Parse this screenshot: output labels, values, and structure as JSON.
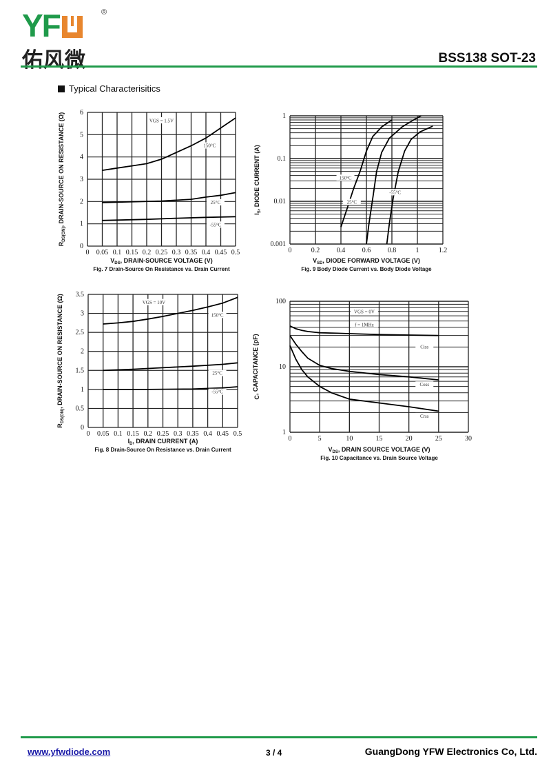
{
  "header": {
    "logo_text": "YFW",
    "logo_cn": "佑风微",
    "registered": "®",
    "part_title": "BSS138  SOT-23",
    "section_title": "Typical  Characterisitics"
  },
  "footer": {
    "website": "www.yfwdiode.com",
    "page": "3 / 4",
    "company": "GuangDong YFW Electronics Co, Ltd."
  },
  "colors": {
    "brand_green": "#1f9a4a",
    "brand_orange": "#e8862e",
    "link": "#1a1aa8"
  },
  "chart_data": [
    {
      "type": "line",
      "caption": "Fig. 7  Drain-Source On Resistance vs. Drain Current",
      "xlabel": {
        "sym": "V",
        "sub": "DS",
        "text": ", DRAIN-SOURCE VOLTAGE (V)"
      },
      "ylabel": {
        "sym": "R",
        "sub": "DS(ON)",
        "text": ", DRAIN-SOURCE ON RESISTANCE (Ω)"
      },
      "xscale": "linear",
      "yscale": "linear",
      "xlim": [
        0,
        0.5
      ],
      "ylim": [
        0,
        6
      ],
      "xticks": [
        "0",
        "0.05",
        "0.1",
        "0.15",
        "0.2",
        "0.25",
        "0.3",
        "0.35",
        "0.4",
        "0.45",
        "0.5"
      ],
      "yticks": [
        "0",
        "1",
        "2",
        "3",
        "4",
        "5",
        "6"
      ],
      "grid": true,
      "annotations": [
        "VGS = 1.5V"
      ],
      "series": [
        {
          "name": "150°C",
          "x": [
            0.05,
            0.1,
            0.15,
            0.2,
            0.25,
            0.3,
            0.35,
            0.4,
            0.45,
            0.5
          ],
          "y": [
            3.4,
            3.5,
            3.6,
            3.7,
            3.9,
            4.2,
            4.5,
            4.85,
            5.3,
            5.75
          ]
        },
        {
          "name": "25°C",
          "x": [
            0.05,
            0.15,
            0.25,
            0.35,
            0.4,
            0.45,
            0.5
          ],
          "y": [
            1.95,
            1.99,
            2.02,
            2.1,
            2.2,
            2.28,
            2.4
          ]
        },
        {
          "name": "-55°C",
          "x": [
            0.05,
            0.2,
            0.3,
            0.4,
            0.5
          ],
          "y": [
            1.15,
            1.2,
            1.25,
            1.29,
            1.32
          ]
        }
      ]
    },
    {
      "type": "line",
      "caption": "Fig. 9  Body Diode Current vs. Body Diode Voltage",
      "xlabel": {
        "sym": "V",
        "sub": "SD",
        "text": ", DIODE FORWARD VOLTAGE (V)"
      },
      "ylabel": {
        "sym": "I",
        "sub": "S",
        "text": ", DIODE CURRENT (A)"
      },
      "xscale": "linear",
      "yscale": "log",
      "xlim": [
        0,
        1.2
      ],
      "ylim": [
        0.001,
        1
      ],
      "xticks": [
        "0",
        "0.2",
        "0.4",
        "0.6",
        "0.8",
        "1",
        "1.2"
      ],
      "yticks": [
        "0.001",
        "0.01",
        "0.1",
        "1"
      ],
      "grid": true,
      "annotations": [],
      "series": [
        {
          "name": "150°C",
          "x": [
            0.4,
            0.45,
            0.5,
            0.55,
            0.6,
            0.65,
            0.72,
            0.8
          ],
          "y": [
            0.0025,
            0.007,
            0.02,
            0.05,
            0.15,
            0.33,
            0.55,
            0.8
          ]
        },
        {
          "name": "25°C",
          "x": [
            0.6,
            0.62,
            0.65,
            0.68,
            0.72,
            0.78,
            0.88,
            0.97,
            1.03
          ],
          "y": [
            0.001,
            0.003,
            0.012,
            0.05,
            0.14,
            0.3,
            0.55,
            0.8,
            1.0
          ]
        },
        {
          "name": "-55°C",
          "x": [
            0.76,
            0.78,
            0.81,
            0.85,
            0.9,
            0.95,
            1.02,
            1.12
          ],
          "y": [
            0.001,
            0.003,
            0.012,
            0.05,
            0.15,
            0.28,
            0.42,
            0.57
          ]
        }
      ]
    },
    {
      "type": "line",
      "caption": "Fig. 8  Drain-Source On Resistance vs. Drain Current",
      "xlabel": {
        "sym": "I",
        "sub": "D",
        "text": ", DRAIN CURRENT (A)"
      },
      "ylabel": {
        "sym": "R",
        "sub": "DS(ON)",
        "text": ", DRAIN-SOURCE ON RESISTANCE (Ω)"
      },
      "xscale": "linear",
      "yscale": "linear",
      "xlim": [
        0,
        0.5
      ],
      "ylim": [
        0,
        3.5
      ],
      "xticks": [
        "0",
        "0.05",
        "0.1",
        "0.15",
        "0.2",
        "0.25",
        "0.3",
        "0.35",
        "0.4",
        "0.45",
        "0.5"
      ],
      "yticks": [
        "0",
        "0.5",
        "1",
        "1.5",
        "2",
        "2.5",
        "3",
        "3.5"
      ],
      "grid": true,
      "annotations": [
        "VGS = 10V"
      ],
      "series": [
        {
          "name": "150°C",
          "x": [
            0.05,
            0.1,
            0.15,
            0.2,
            0.25,
            0.3,
            0.35,
            0.4,
            0.45,
            0.5
          ],
          "y": [
            2.72,
            2.75,
            2.79,
            2.85,
            2.92,
            3.0,
            3.08,
            3.17,
            3.27,
            3.42
          ]
        },
        {
          "name": "25°C",
          "x": [
            0.05,
            0.15,
            0.25,
            0.35,
            0.45,
            0.5
          ],
          "y": [
            1.5,
            1.53,
            1.57,
            1.61,
            1.66,
            1.7
          ]
        },
        {
          "name": "-55°C",
          "x": [
            0.05,
            0.2,
            0.35,
            0.45,
            0.5
          ],
          "y": [
            1.0,
            1.0,
            1.01,
            1.04,
            1.07
          ]
        }
      ]
    },
    {
      "type": "line",
      "caption": "Fig. 10  Capacitance vs. Drain Source Voltage",
      "xlabel": {
        "sym": "V",
        "sub": "DS",
        "text": ", DRAIN SOURCE VOLTAGE (V)"
      },
      "ylabel": {
        "sym": "C",
        "sub": "",
        "text": ", CAPACITANCE (pF)"
      },
      "xscale": "linear",
      "yscale": "log",
      "xlim": [
        0,
        30
      ],
      "ylim": [
        1,
        100
      ],
      "xticks": [
        "0",
        "5",
        "10",
        "15",
        "20",
        "25",
        "30"
      ],
      "yticks": [
        "1",
        "10",
        "100"
      ],
      "grid": true,
      "annotations": [
        "VGS = 0V",
        "f = 1MHz"
      ],
      "series": [
        {
          "name": "Ciss",
          "x": [
            0,
            1,
            2,
            3,
            5,
            8,
            10,
            15,
            20,
            25
          ],
          "y": [
            42,
            38,
            36,
            34.5,
            33,
            32.5,
            32,
            31,
            30.5,
            30
          ]
        },
        {
          "name": "Coss",
          "x": [
            0,
            1,
            2,
            3,
            5,
            7,
            10,
            15,
            20,
            25
          ],
          "y": [
            30,
            22,
            17,
            13.5,
            10.5,
            9.4,
            8.5,
            7.6,
            7,
            6.3
          ]
        },
        {
          "name": "Crss",
          "x": [
            0,
            1,
            2,
            3,
            5,
            7,
            10,
            15,
            20,
            25
          ],
          "y": [
            21,
            13,
            9,
            7,
            5,
            4,
            3.2,
            2.8,
            2.45,
            2.1
          ]
        }
      ]
    }
  ]
}
